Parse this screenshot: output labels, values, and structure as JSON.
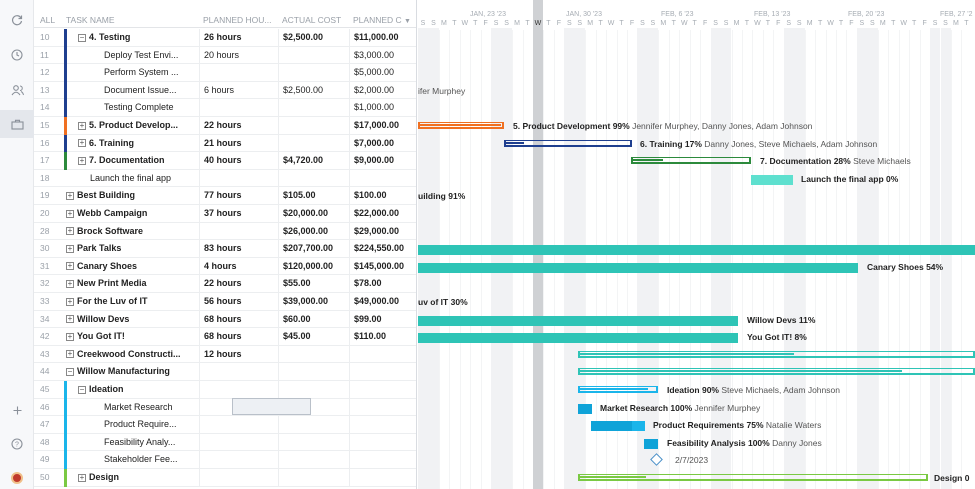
{
  "colors": {
    "teal": "#2ec4b6",
    "teal_light": "#5ee0cf",
    "orange": "#f07021",
    "navy": "#1f3f8f",
    "green": "#2c8a3c",
    "cyan": "#1ab5ea",
    "purple": "#7a3fb0"
  },
  "rail_icons": [
    "refresh-icon",
    "clock-icon",
    "people-icon",
    "briefcase-icon",
    "plus-icon",
    "help-icon",
    "avatar"
  ],
  "header": {
    "all": "ALL",
    "task_name": "TASK NAME",
    "planned_hours": "PLANNED HOU...",
    "actual_cost": "ACTUAL COST",
    "planned_cost": "PLANNED C"
  },
  "rows": [
    {
      "num": "10",
      "name": "4. Testing",
      "ph": "26 hours",
      "ac": "$2,500.00",
      "pc": "$11,000.00",
      "bold": true,
      "indent": 1,
      "expander": "−"
    },
    {
      "num": "11",
      "name": "Deploy Test Envi...",
      "ph": "20 hours",
      "ac": "",
      "pc": "$3,000.00",
      "bold": false,
      "indent": 3
    },
    {
      "num": "12",
      "name": "Perform System ...",
      "ph": "",
      "ac": "",
      "pc": "$5,000.00",
      "bold": false,
      "indent": 3
    },
    {
      "num": "13",
      "name": "Document Issue...",
      "ph": "6 hours",
      "ac": "$2,500.00",
      "pc": "$2,000.00",
      "bold": false,
      "indent": 3
    },
    {
      "num": "14",
      "name": "Testing Complete",
      "ph": "",
      "ac": "",
      "pc": "$1,000.00",
      "bold": false,
      "indent": 3
    },
    {
      "num": "15",
      "name": "5. Product Develop...",
      "ph": "22 hours",
      "ac": "",
      "pc": "$17,000.00",
      "bold": true,
      "indent": 1,
      "expander": "+"
    },
    {
      "num": "16",
      "name": "6. Training",
      "ph": "21 hours",
      "ac": "",
      "pc": "$7,000.00",
      "bold": true,
      "indent": 1,
      "expander": "+"
    },
    {
      "num": "17",
      "name": "7. Documentation",
      "ph": "40 hours",
      "ac": "$4,720.00",
      "pc": "$9,000.00",
      "bold": true,
      "indent": 1,
      "expander": "+"
    },
    {
      "num": "18",
      "name": "Launch the final app",
      "ph": "",
      "ac": "",
      "pc": "",
      "bold": false,
      "indent": 2
    },
    {
      "num": "19",
      "name": "Best Building",
      "ph": "77 hours",
      "ac": "$105.00",
      "pc": "$100.00",
      "bold": true,
      "indent": 0,
      "expander": "+"
    },
    {
      "num": "20",
      "name": "Webb Campaign",
      "ph": "37 hours",
      "ac": "$20,000.00",
      "pc": "$22,000.00",
      "bold": true,
      "indent": 0,
      "expander": "+"
    },
    {
      "num": "28",
      "name": "Brock Software",
      "ph": "",
      "ac": "$26,000.00",
      "pc": "$29,000.00",
      "bold": true,
      "indent": 0,
      "expander": "+"
    },
    {
      "num": "30",
      "name": "Park Talks",
      "ph": "83 hours",
      "ac": "$207,700.00",
      "pc": "$224,550.00",
      "bold": true,
      "indent": 0,
      "expander": "+"
    },
    {
      "num": "31",
      "name": "Canary Shoes",
      "ph": "4 hours",
      "ac": "$120,000.00",
      "pc": "$145,000.00",
      "bold": true,
      "indent": 0,
      "expander": "+"
    },
    {
      "num": "32",
      "name": "New Print Media",
      "ph": "22 hours",
      "ac": "$55.00",
      "pc": "$78.00",
      "bold": true,
      "indent": 0,
      "expander": "+"
    },
    {
      "num": "33",
      "name": "For the Luv of IT",
      "ph": "56 hours",
      "ac": "$39,000.00",
      "pc": "$49,000.00",
      "bold": true,
      "indent": 0,
      "expander": "+"
    },
    {
      "num": "34",
      "name": "Willow Devs",
      "ph": "68 hours",
      "ac": "$60.00",
      "pc": "$99.00",
      "bold": true,
      "indent": 0,
      "expander": "+"
    },
    {
      "num": "42",
      "name": "You Got IT!",
      "ph": "68 hours",
      "ac": "$45.00",
      "pc": "$110.00",
      "bold": true,
      "indent": 0,
      "expander": "+"
    },
    {
      "num": "43",
      "name": "Creekwood Constructi...",
      "ph": "12 hours",
      "ac": "",
      "pc": "",
      "bold": true,
      "indent": 0,
      "expander": "+"
    },
    {
      "num": "44",
      "name": "Willow Manufacturing",
      "ph": "",
      "ac": "",
      "pc": "",
      "bold": true,
      "indent": 0,
      "expander": "−"
    },
    {
      "num": "45",
      "name": "Ideation",
      "ph": "",
      "ac": "",
      "pc": "",
      "bold": true,
      "indent": 1,
      "expander": "−"
    },
    {
      "num": "46",
      "name": "Market Research",
      "ph": "",
      "ac": "",
      "pc": "",
      "bold": false,
      "indent": 3
    },
    {
      "num": "47",
      "name": "Product Require...",
      "ph": "",
      "ac": "",
      "pc": "",
      "bold": false,
      "indent": 3
    },
    {
      "num": "48",
      "name": "Feasibility Analy...",
      "ph": "",
      "ac": "",
      "pc": "",
      "bold": false,
      "indent": 3
    },
    {
      "num": "49",
      "name": "Stakeholder Fee...",
      "ph": "",
      "ac": "",
      "pc": "",
      "bold": false,
      "indent": 3
    },
    {
      "num": "50",
      "name": "Design",
      "ph": "",
      "ac": "",
      "pc": "",
      "bold": true,
      "indent": 1,
      "expander": "+"
    }
  ],
  "timeline": {
    "weeks": [
      "JAN, 23 '23",
      "JAN, 30 '23",
      "FEB, 6 '23",
      "FEB, 13 '23",
      "FEB, 20 '23",
      "FEB, 27 '2"
    ],
    "day_letters": [
      "S",
      "S",
      "M",
      "T",
      "W",
      "T",
      "F",
      "S",
      "S",
      "M",
      "T",
      "W",
      "T",
      "F",
      "S",
      "S",
      "M",
      "T",
      "W",
      "T",
      "F",
      "S",
      "S",
      "M",
      "T",
      "W",
      "T",
      "F",
      "S",
      "S",
      "M",
      "T",
      "W",
      "T",
      "F",
      "S",
      "S",
      "M",
      "T",
      "W",
      "T",
      "F",
      "S",
      "S",
      "M",
      "T",
      "W",
      "T",
      "F",
      "S",
      "S",
      "M",
      "T"
    ],
    "today_letter": "M"
  },
  "gantt_labels": {
    "r13": "ifer Murphey",
    "r15_name": "5. Product Development",
    "r15_pct": "99%",
    "r15_people": "Jennifer Murphey, Danny Jones, Adam Johnson",
    "r16_name": "6. Training",
    "r16_pct": "17%",
    "r16_people": "Danny Jones, Steve Michaels, Adam Johnson",
    "r17_name": "7. Documentation",
    "r17_pct": "28%",
    "r17_people": "Steve Michaels",
    "r18_name": "Launch the final app",
    "r18_pct": "0%",
    "r19": "uilding",
    "r19_pct": "91%",
    "r31_name": "Canary Shoes",
    "r31_pct": "54%",
    "r33": "uv of IT",
    "r33_pct": "30%",
    "r34_name": "Willow Devs",
    "r34_pct": "11%",
    "r42_name": "You Got IT!",
    "r42_pct": "8%",
    "r45_name": "Ideation",
    "r45_pct": "90%",
    "r45_people": "Steve Michaels, Adam Johnson",
    "r46_name": "Market Research",
    "r46_pct": "100%",
    "r46_people": "Jennifer Murphey",
    "r47_name": "Product Requirements",
    "r47_pct": "75%",
    "r47_people": "Natalie Waters",
    "r48_name": "Feasibility Analysis",
    "r48_pct": "100%",
    "r48_people": "Danny Jones",
    "r49_date": "2/7/2023",
    "r50_name": "Design",
    "r50_pct": "0"
  }
}
